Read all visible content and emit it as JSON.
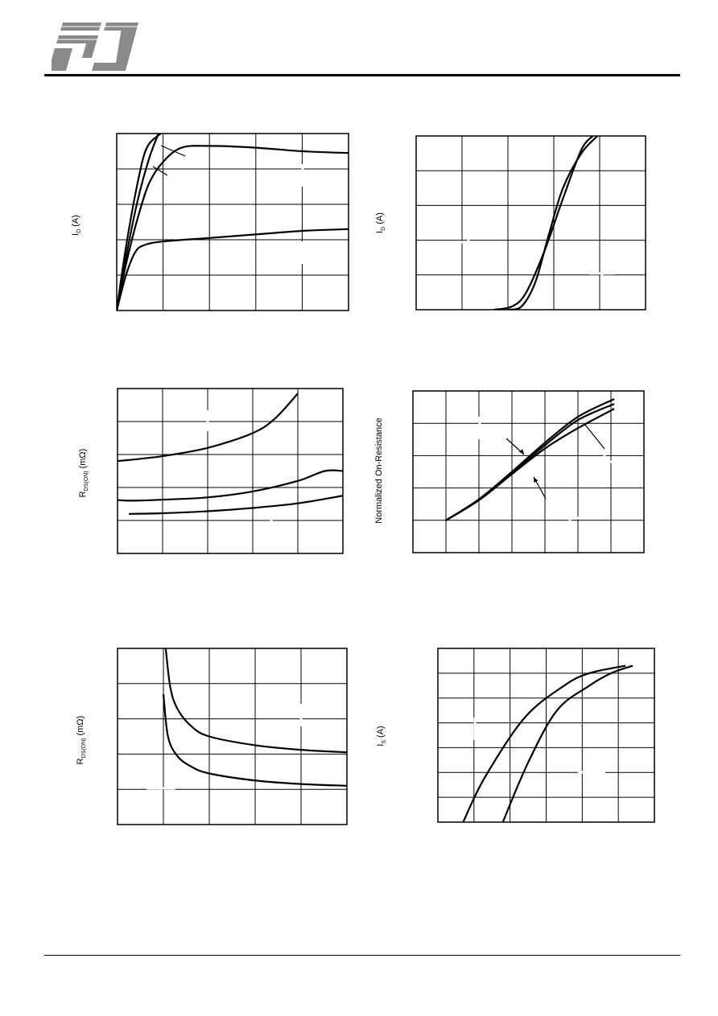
{
  "logo": {
    "icon": "pj-logo-icon"
  },
  "colors": {
    "line": "#000000",
    "grid": "#000000",
    "background": "#ffffff"
  },
  "chart_data": [
    {
      "id": "output-characteristics",
      "type": "line",
      "ylabel_main": "I",
      "ylabel_sub": "D",
      "ylabel_rest": " (A)",
      "grid": true,
      "grid_divisions": [
        5,
        5
      ],
      "xlim": [
        0,
        5
      ],
      "ylim": [
        0,
        5
      ],
      "series": [
        {
          "x": [
            0,
            0.2,
            0.45,
            0.65,
            0.95
          ],
          "y": [
            0,
            1.8,
            3.6,
            4.6,
            5.0
          ]
        },
        {
          "x": [
            0,
            0.2,
            0.45,
            0.7,
            0.9
          ],
          "y": [
            0,
            1.5,
            3.1,
            4.3,
            5.0
          ]
        },
        {
          "x": [
            0,
            0.2,
            0.45,
            0.7,
            1.0,
            1.4,
            2.0,
            3.0,
            4.0,
            5.0
          ],
          "y": [
            0,
            1.3,
            2.6,
            3.6,
            4.2,
            4.6,
            4.65,
            4.6,
            4.5,
            4.45
          ]
        },
        {
          "x": [
            0,
            0.2,
            0.4,
            0.6,
            1.0,
            2.0,
            3.0,
            4.0,
            5.0
          ],
          "y": [
            0,
            1.0,
            1.65,
            1.85,
            1.95,
            2.05,
            2.15,
            2.25,
            2.3
          ]
        }
      ]
    },
    {
      "id": "transfer-characteristics",
      "type": "line",
      "ylabel_main": "I",
      "ylabel_sub": "D",
      "ylabel_rest": " (A)",
      "grid": true,
      "grid_divisions": [
        5,
        5
      ],
      "xlim": [
        0,
        5
      ],
      "ylim": [
        0,
        5
      ],
      "series": [
        {
          "x": [
            1.7,
            2.1,
            2.4,
            2.8,
            3.2,
            3.6,
            3.85
          ],
          "y": [
            0,
            0.1,
            0.5,
            1.7,
            3.2,
            4.6,
            5.0
          ]
        },
        {
          "x": [
            2.0,
            2.3,
            2.6,
            2.9,
            3.2,
            3.6,
            3.95
          ],
          "y": [
            0,
            0.1,
            0.8,
            2.2,
            3.5,
            4.5,
            5.0
          ]
        }
      ]
    },
    {
      "id": "on-resistance-vs-current",
      "type": "line",
      "ylabel_main": "R",
      "ylabel_sub": "DS(ON)",
      "ylabel_rest": " (mΩ)",
      "grid": true,
      "grid_divisions": [
        5,
        5
      ],
      "xlim": [
        0,
        5
      ],
      "ylim": [
        0,
        5
      ],
      "series": [
        {
          "x": [
            0,
            1,
            2,
            3,
            3.5,
            4.0
          ],
          "y": [
            2.8,
            2.95,
            3.2,
            3.65,
            4.1,
            4.85
          ]
        },
        {
          "x": [
            0,
            0.3,
            1,
            2,
            3,
            4,
            4.6,
            5.0
          ],
          "y": [
            1.62,
            1.6,
            1.63,
            1.7,
            1.88,
            2.2,
            2.5,
            2.5
          ]
        },
        {
          "x": [
            0.25,
            1,
            2,
            3,
            4,
            5.0
          ],
          "y": [
            1.2,
            1.22,
            1.28,
            1.38,
            1.52,
            1.75
          ]
        }
      ]
    },
    {
      "id": "normalized-on-resistance",
      "type": "line",
      "ylabel_main": "Normalized On-Resistance",
      "ylabel_sub": "",
      "ylabel_rest": "",
      "grid": true,
      "grid_divisions": [
        7,
        5
      ],
      "xlim": [
        0,
        7
      ],
      "ylim": [
        0,
        5
      ],
      "series": [
        {
          "x": [
            1,
            2,
            3,
            4,
            5,
            6.1
          ],
          "y": [
            1.0,
            1.65,
            2.5,
            3.4,
            4.2,
            4.75
          ]
        },
        {
          "x": [
            1,
            2,
            3,
            4,
            5,
            6.1
          ],
          "y": [
            1.0,
            1.63,
            2.46,
            3.32,
            4.1,
            4.6
          ]
        },
        {
          "x": [
            1,
            2,
            3,
            4,
            5,
            6.1
          ],
          "y": [
            1.0,
            1.62,
            2.43,
            3.22,
            3.85,
            4.45
          ]
        }
      ]
    },
    {
      "id": "on-resistance-vs-gate-voltage",
      "type": "line",
      "ylabel_main": "R",
      "ylabel_sub": "DS(ON)",
      "ylabel_rest": " (mΩ)",
      "grid": true,
      "grid_divisions": [
        5,
        5
      ],
      "xlim": [
        0,
        5
      ],
      "ylim": [
        0,
        5
      ],
      "series": [
        {
          "x": [
            1.05,
            1.15,
            1.3,
            1.6,
            2.0,
            3.0,
            4.0,
            5.0
          ],
          "y": [
            5.0,
            3.9,
            3.3,
            2.8,
            2.5,
            2.25,
            2.12,
            2.05
          ]
        },
        {
          "x": [
            1.0,
            1.1,
            1.3,
            1.6,
            2.0,
            3.0,
            4.0,
            5.0
          ],
          "y": [
            3.7,
            2.5,
            1.95,
            1.65,
            1.45,
            1.25,
            1.15,
            1.1
          ]
        }
      ]
    },
    {
      "id": "source-drain-diode",
      "type": "line",
      "ylabel_main": "I",
      "ylabel_sub": "S",
      "ylabel_rest": " (A)",
      "grid": true,
      "grid_divisions": [
        6,
        7
      ],
      "xlim": [
        0,
        6
      ],
      "ylim": [
        0,
        7
      ],
      "series": [
        {
          "x": [
            0.7,
            1.3,
            2.4,
            3.5,
            4.2,
            5.2
          ],
          "y": [
            0,
            1.8,
            4.2,
            5.5,
            6.0,
            6.3
          ]
        },
        {
          "x": [
            1.8,
            2.5,
            3.3,
            4.2,
            4.8,
            5.4
          ],
          "y": [
            0,
            2.4,
            4.5,
            5.5,
            6.0,
            6.3
          ]
        }
      ]
    }
  ]
}
